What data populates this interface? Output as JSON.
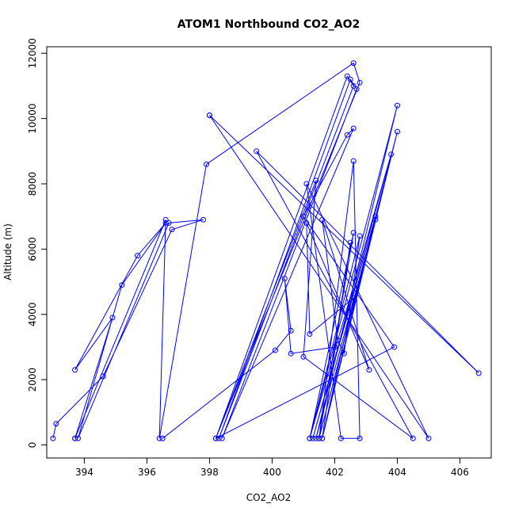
{
  "chart_data": {
    "type": "line",
    "title": "ATOM1 Northbound CO2_AO2",
    "xlabel": "CO2_AO2",
    "ylabel": "Altitude (m)",
    "xlim": [
      392.8,
      407.0
    ],
    "ylim": [
      -400,
      12200
    ],
    "xticks": [
      394,
      396,
      398,
      400,
      402,
      404,
      406
    ],
    "yticks": [
      0,
      2000,
      4000,
      6000,
      8000,
      10000,
      12000
    ],
    "grid": false,
    "legend": "none",
    "colors": {
      "series": "#0000ff",
      "axis": "#000000"
    },
    "series": [
      {
        "marker": "open-circle",
        "x": [
          393.0,
          393.1,
          394.6,
          396.8,
          397.8,
          396.7,
          393.8,
          395.2,
          396.6,
          395.7,
          393.7,
          394.9,
          393.7
        ],
        "y": [
          200,
          650,
          2100,
          6600,
          6900,
          6800,
          200,
          4900,
          6800,
          5800,
          2300,
          3900,
          200
        ]
      },
      {
        "marker": "open-circle",
        "x": [
          393.7,
          396.6,
          396.4,
          397.9,
          402.6,
          402.8,
          398.2,
          402.4,
          402.6,
          398.3,
          402.5,
          402.7,
          398.4,
          402.6,
          402.4,
          401.0,
          403.9,
          398.2,
          401.4,
          401.0,
          404.5,
          399.5,
          406.6,
          398.0
        ],
        "y": [
          200,
          6900,
          200,
          8600,
          11700,
          11100,
          200,
          11300,
          11000,
          200,
          11200,
          10900,
          200,
          9700,
          9500,
          7000,
          3000,
          200,
          8100,
          2700,
          200,
          9000,
          2200,
          10100
        ]
      },
      {
        "marker": "open-circle",
        "x": [
          398.0,
          405.0,
          401.1,
          402.2,
          402.8,
          402.6,
          401.5,
          403.3,
          401.4,
          404.0,
          401.2,
          402.6,
          401.5,
          404.0,
          401.6,
          402.6,
          401.2,
          401.1,
          403.1,
          401.6,
          402.1,
          402.3,
          402.8,
          401.2,
          403.8,
          401.3,
          403.3,
          401.6,
          402.5,
          402.0,
          400.6,
          400.4,
          400.6,
          400.1,
          396.5
        ],
        "y": [
          10100,
          200,
          8000,
          200,
          200,
          8700,
          200,
          6900,
          200,
          10400,
          200,
          6500,
          200,
          9600,
          200,
          4500,
          3400,
          6800,
          2300,
          6900,
          3200,
          2800,
          6400,
          200,
          8900,
          200,
          7000,
          200,
          6200,
          3000,
          2800,
          5100,
          3500,
          2900,
          200
        ]
      }
    ]
  }
}
